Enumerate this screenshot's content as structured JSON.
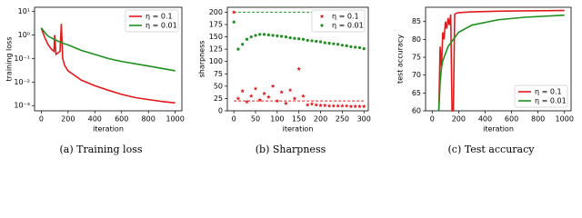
{
  "chart_data": [
    {
      "type": "line",
      "caption": "(a) Training loss",
      "xlabel": "iteration",
      "ylabel": "training loss",
      "ylog": true,
      "legend": "upper right",
      "x": [
        0,
        25,
        50,
        75,
        95,
        100,
        110,
        140,
        150,
        160,
        175,
        200,
        300,
        400,
        500,
        600,
        700,
        800,
        900,
        1000
      ],
      "series": [
        {
          "name": "η = 0.1",
          "color": "#e31a1c",
          "values": [
            2.0,
            0.8,
            0.4,
            0.25,
            0.2,
            1.0,
            0.15,
            0.2,
            3.0,
            0.1,
            0.05,
            0.03,
            0.012,
            0.007,
            0.0045,
            0.003,
            0.0022,
            0.0018,
            0.0015,
            0.0013
          ]
        },
        {
          "name": "η = 0.01",
          "color": "#1f8f1f",
          "values": [
            2.0,
            1.3,
            0.9,
            0.75,
            0.65,
            0.63,
            0.6,
            0.5,
            0.48,
            0.45,
            0.42,
            0.38,
            0.22,
            0.15,
            0.1,
            0.075,
            0.06,
            0.048,
            0.038,
            0.03
          ]
        }
      ],
      "xlim": [
        -50,
        1050
      ],
      "xticks": [
        0,
        200,
        400,
        600,
        800,
        1000
      ],
      "ylim": [
        0.0006,
        15
      ],
      "yticks": [
        {
          "value": 0.001,
          "label": "10⁻³"
        },
        {
          "value": 0.01,
          "label": "10⁻²"
        },
        {
          "value": 0.1,
          "label": "10⁻¹"
        },
        {
          "value": 1,
          "label": "10⁰"
        },
        {
          "value": 10,
          "label": "10¹"
        }
      ]
    },
    {
      "type": "scatter",
      "caption": "(b) Sharpness",
      "xlabel": "iteration",
      "ylabel": "sharpness",
      "legend": "upper right",
      "x": [
        0,
        10,
        20,
        30,
        40,
        50,
        60,
        70,
        80,
        90,
        100,
        110,
        120,
        130,
        140,
        150,
        160,
        170,
        180,
        190,
        200,
        210,
        220,
        230,
        240,
        250,
        260,
        270,
        280,
        290,
        300
      ],
      "series": [
        {
          "name": "η = 0.1",
          "color": "#e31a1c",
          "marker": "star",
          "values": [
            200,
            25,
            40,
            18,
            30,
            45,
            22,
            35,
            28,
            50,
            20,
            38,
            15,
            42,
            25,
            85,
            30,
            12,
            14,
            12,
            11,
            11,
            10,
            10,
            10,
            10,
            10,
            9,
            9,
            9,
            9
          ]
        },
        {
          "name": "η = 0.01",
          "color": "#1f8f1f",
          "marker": "dot",
          "values": [
            180,
            125,
            135,
            145,
            150,
            153,
            155,
            155,
            154,
            153,
            152,
            151,
            150,
            148,
            147,
            146,
            145,
            143,
            142,
            141,
            140,
            138,
            137,
            136,
            135,
            133,
            132,
            130,
            129,
            128,
            126
          ]
        }
      ],
      "hlines": [
        {
          "value": 20,
          "color": "#e31a1c"
        },
        {
          "value": 200,
          "color": "#1f8f1f"
        }
      ],
      "xlim": [
        -15,
        310
      ],
      "xticks": [
        0,
        50,
        100,
        150,
        200,
        250,
        300
      ],
      "ylim": [
        0,
        210
      ],
      "yticks": [
        0,
        25,
        50,
        75,
        100,
        125,
        150,
        175,
        200
      ]
    },
    {
      "type": "line",
      "caption": "(c) Test accuracy",
      "xlabel": "iteration",
      "ylabel": "test accuracy",
      "legend": "lower right",
      "x": [
        50,
        60,
        70,
        80,
        90,
        100,
        110,
        120,
        130,
        140,
        150,
        160,
        170,
        180,
        200,
        300,
        500,
        700,
        1000
      ],
      "series": [
        {
          "name": "η = 0.1",
          "color": "#e31a1c",
          "values": [
            60,
            78,
            72,
            82,
            80,
            85,
            83,
            86,
            84,
            87,
            60,
            60,
            87,
            87.3,
            87.5,
            87.7,
            87.9,
            88,
            88.1
          ]
        },
        {
          "name": "η = 0.01",
          "color": "#1f8f1f",
          "values": [
            60,
            68,
            72,
            74,
            75,
            76,
            77,
            78,
            78.5,
            79,
            79.5,
            80,
            80.5,
            81,
            82,
            84,
            85.5,
            86.2,
            86.8
          ]
        }
      ],
      "xlim": [
        -50,
        1050
      ],
      "xticks": [
        0,
        200,
        400,
        600,
        800,
        1000
      ],
      "ylim": [
        60,
        89
      ],
      "yticks": [
        60,
        65,
        70,
        75,
        80,
        85
      ]
    }
  ]
}
